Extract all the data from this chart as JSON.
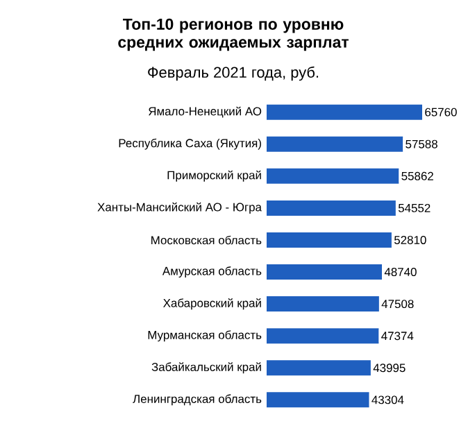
{
  "chart_data": {
    "type": "bar",
    "orientation": "horizontal",
    "title": "Топ-10 регионов по уровню средних ожидаемых зарплат",
    "subtitle": "Февраль 2021 года, руб.",
    "categories": [
      "Ямало-Ненецкий АО",
      "Республика Саха (Якутия)",
      "Приморский край",
      "Ханты-Мансийский АО - Югра",
      "Московская область",
      "Амурская область",
      "Хабаровский край",
      "Мурманская область",
      "Забайкальский край",
      "Ленинградская область"
    ],
    "values": [
      65760,
      57588,
      55862,
      54552,
      52810,
      48740,
      47508,
      47374,
      43995,
      43304
    ],
    "color": "#1f5fbf",
    "data_labels": true
  }
}
